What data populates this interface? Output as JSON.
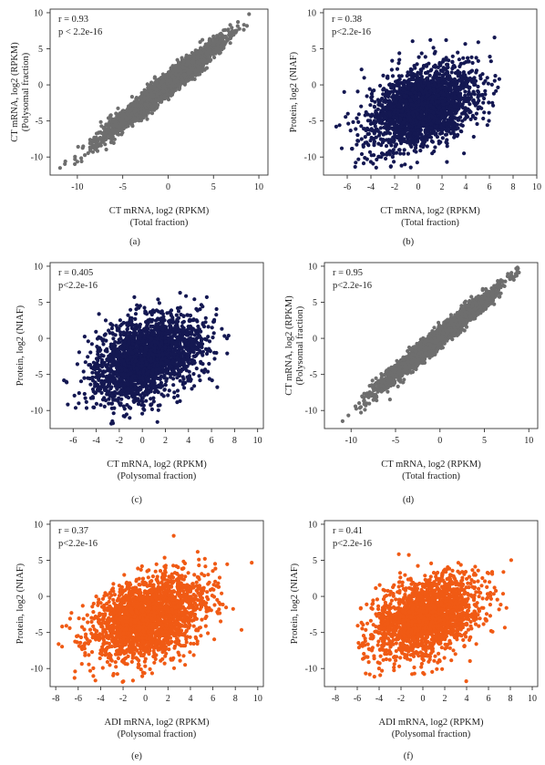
{
  "panel_letters": [
    "(a)",
    "(b)",
    "(c)",
    "(d)",
    "(e)",
    "(f)"
  ],
  "chart_data": [
    {
      "type": "scatter",
      "panel": "(a)",
      "color": "#6e6e6e",
      "stats": {
        "r": "r = 0.93",
        "p": "p < 2.2e-16"
      },
      "xlabel": "CT mRNA, log2 (RPKM)",
      "xlabel2": "(Total fraction)",
      "ylabel": "CT mRNA, log2 (RPKM)",
      "ylabel2": "(Polysomal fraction)",
      "xlim": [
        -13,
        11
      ],
      "ylim": [
        -12.5,
        10.5
      ],
      "xticks": [
        -10,
        -5,
        0,
        5,
        10
      ],
      "yticks": [
        -10,
        -5,
        0,
        5,
        10
      ],
      "distribution": {
        "n": 3200,
        "x_center": -0.5,
        "x_spread": 3.2,
        "slope": 1.0,
        "intercept": 0.1,
        "residual": 0.75,
        "x_min": -12,
        "x_max": 9
      }
    },
    {
      "type": "scatter",
      "panel": "(b)",
      "color": "#141852",
      "stats": {
        "r": "r = 0.38",
        "p": "p<2.2e-16"
      },
      "xlabel": "CT mRNA, log2 (RPKM)",
      "xlabel2": "(Total fraction)",
      "ylabel": "Protein, log2 (NIAF)",
      "ylabel2": "",
      "xlim": [
        -8,
        10
      ],
      "ylim": [
        -12.5,
        10.5
      ],
      "xticks": [
        -6,
        -4,
        -2,
        0,
        2,
        4,
        6,
        8,
        10
      ],
      "yticks": [
        -10,
        -5,
        0,
        5,
        10
      ],
      "distribution": {
        "n": 2300,
        "x_center": 0.3,
        "x_spread": 2.2,
        "slope": 0.45,
        "intercept": -3.2,
        "residual": 2.6,
        "x_min": -7,
        "x_max": 9
      }
    },
    {
      "type": "scatter",
      "panel": "(c)",
      "color": "#141852",
      "stats": {
        "r": "r = 0.405",
        "p": "p<2.2e-16"
      },
      "xlabel": "CT mRNA, log2 (RPKM)",
      "xlabel2": "(Polysomal fraction)",
      "ylabel": "Protein, log2 (NIAF)",
      "ylabel2": "",
      "xlim": [
        -8,
        10.5
      ],
      "ylim": [
        -12.5,
        10.5
      ],
      "xticks": [
        -6,
        -4,
        -2,
        0,
        2,
        4,
        6,
        8,
        10
      ],
      "yticks": [
        -10,
        -5,
        0,
        5,
        10
      ],
      "distribution": {
        "n": 2300,
        "x_center": 0.5,
        "x_spread": 2.3,
        "slope": 0.48,
        "intercept": -3.0,
        "residual": 2.6,
        "x_min": -7,
        "x_max": 9.5
      }
    },
    {
      "type": "scatter",
      "panel": "(d)",
      "color": "#6e6e6e",
      "stats": {
        "r": "r = 0.95",
        "p": "p<2.2e-16"
      },
      "xlabel": "CT mRNA, log2 (RPKM)",
      "xlabel2": "(Total fraction)",
      "ylabel": "CT mRNA, log2 (RPKM)",
      "ylabel2": "(Polysomal fraction)",
      "xlim": [
        -13,
        11
      ],
      "ylim": [
        -12.5,
        10.5
      ],
      "xticks": [
        -10,
        -5,
        0,
        5,
        10
      ],
      "yticks": [
        -10,
        -5,
        0,
        5,
        10
      ],
      "distribution": {
        "n": 3200,
        "x_center": -0.3,
        "x_spread": 3.1,
        "slope": 1.0,
        "intercept": 0.2,
        "residual": 0.65,
        "x_min": -11,
        "x_max": 9
      }
    },
    {
      "type": "scatter",
      "panel": "(e)",
      "color": "#f05a14",
      "stats": {
        "r": "r = 0.37",
        "p": "p<2.2e-16"
      },
      "xlabel": "ADI mRNA, log2 (RPKM)",
      "xlabel2": "(Polysomal fraction)",
      "ylabel": "Protein, log2 (NIAF)",
      "ylabel2": "",
      "xlim": [
        -8.5,
        10.5
      ],
      "ylim": [
        -12.5,
        10.5
      ],
      "xticks": [
        -8,
        -6,
        -4,
        -2,
        0,
        2,
        4,
        6,
        8,
        10
      ],
      "yticks": [
        -10,
        -5,
        0,
        5,
        10
      ],
      "distribution": {
        "n": 2300,
        "x_center": 0.2,
        "x_spread": 2.5,
        "slope": 0.4,
        "intercept": -3.0,
        "residual": 2.7,
        "x_min": -8,
        "x_max": 10
      }
    },
    {
      "type": "scatter",
      "panel": "(f)",
      "color": "#f05a14",
      "stats": {
        "r": "r = 0.41",
        "p": "p<2.2e-16"
      },
      "xlabel": "ADI mRNA, log2 (RPKM)",
      "xlabel2": "(Polysomal fraction)",
      "ylabel": "Protein, log2 (NIAF)",
      "ylabel2": "",
      "xlim": [
        -9,
        10.5
      ],
      "ylim": [
        -12.5,
        10.5
      ],
      "xticks": [
        -8,
        -6,
        -4,
        -2,
        0,
        2,
        4,
        6,
        8,
        10
      ],
      "yticks": [
        -10,
        -5,
        0,
        5,
        10
      ],
      "distribution": {
        "n": 2000,
        "x_center": 0.4,
        "x_spread": 2.4,
        "slope": 0.45,
        "intercept": -3.0,
        "residual": 2.6,
        "x_min": -6,
        "x_max": 9.5
      }
    }
  ]
}
